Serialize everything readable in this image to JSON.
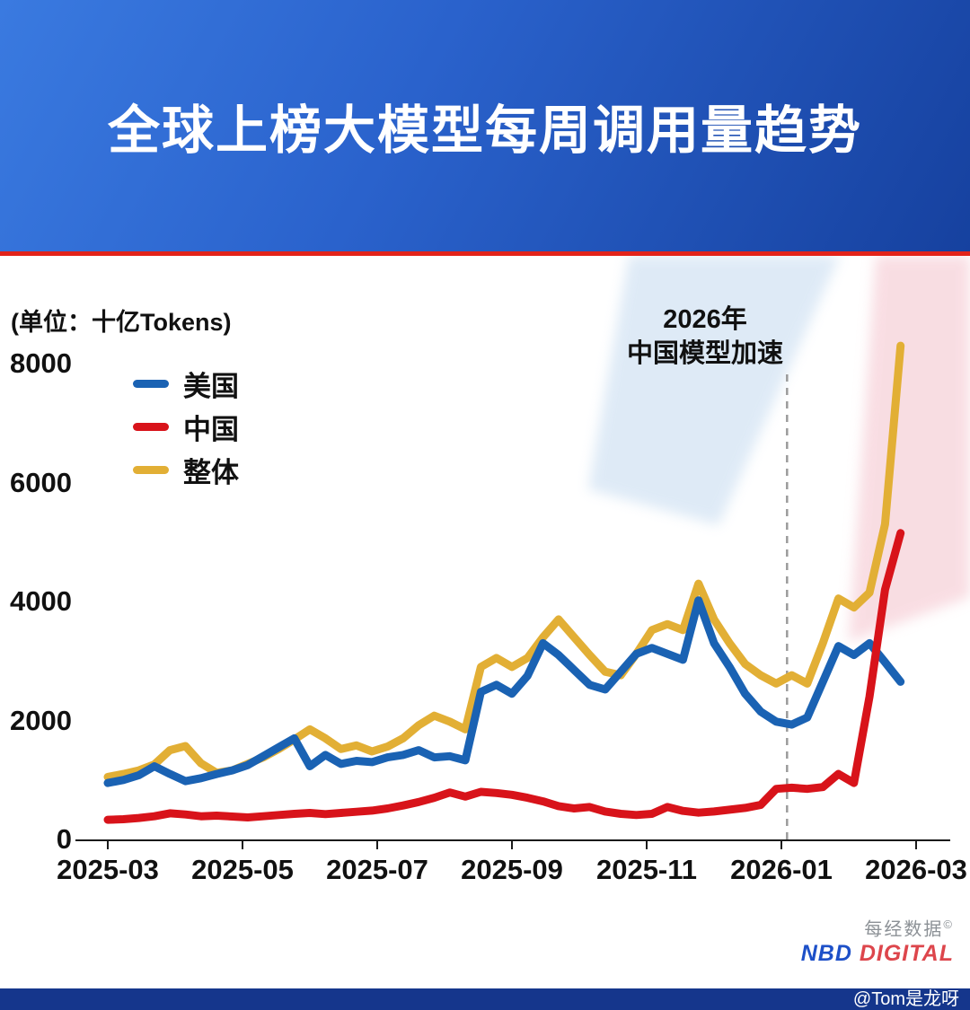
{
  "header": {
    "title": "全球上榜大模型每周调用量趋势"
  },
  "chart_data": {
    "type": "line",
    "title": "全球上榜大模型每周调用量趋势",
    "unit_label": "(单位：十亿Tokens)",
    "x_tick_labels": [
      "2025-03",
      "2025-05",
      "2025-07",
      "2025-09",
      "2025-11",
      "2026-01",
      "2026-03"
    ],
    "y_ticks": [
      0,
      2000,
      4000,
      6000,
      8000
    ],
    "ylim": [
      0,
      8600
    ],
    "x_weeks": 52,
    "grid": false,
    "legend_position": "top-left",
    "annotation": {
      "line1": "2026年",
      "line2": "中国模型加速",
      "x_index": 43.7
    },
    "series": [
      {
        "key": "us",
        "name": "美国",
        "color": "#1A62B3",
        "values": [
          950,
          1000,
          1080,
          1230,
          1100,
          980,
          1030,
          1100,
          1160,
          1250,
          1400,
          1550,
          1700,
          1230,
          1420,
          1270,
          1320,
          1300,
          1380,
          1420,
          1500,
          1380,
          1400,
          1330,
          2480,
          2600,
          2450,
          2750,
          3300,
          3100,
          2850,
          2600,
          2520,
          2820,
          3120,
          3220,
          3120,
          3020,
          4020,
          3300,
          2900,
          2450,
          2150,
          1980,
          1930,
          2050,
          2650,
          3250,
          3100,
          3300,
          2980,
          2650
        ]
      },
      {
        "key": "china",
        "name": "中国",
        "color": "#D8131A",
        "values": [
          330,
          340,
          360,
          390,
          440,
          420,
          390,
          400,
          385,
          370,
          390,
          410,
          430,
          445,
          425,
          445,
          465,
          485,
          520,
          570,
          630,
          700,
          790,
          720,
          800,
          780,
          750,
          700,
          640,
          560,
          520,
          545,
          470,
          430,
          410,
          430,
          545,
          480,
          450,
          470,
          500,
          530,
          580,
          850,
          870,
          850,
          880,
          1100,
          950,
          2400,
          4200,
          5150
        ]
      },
      {
        "key": "overall",
        "name": "整体",
        "color": "#E2AF35",
        "values": [
          1050,
          1100,
          1160,
          1260,
          1500,
          1570,
          1280,
          1120,
          1160,
          1270,
          1380,
          1520,
          1680,
          1850,
          1700,
          1520,
          1580,
          1480,
          1560,
          1700,
          1920,
          2080,
          1980,
          1850,
          2900,
          3050,
          2900,
          3050,
          3400,
          3700,
          3400,
          3100,
          2820,
          2760,
          3120,
          3520,
          3620,
          3520,
          4300,
          3700,
          3300,
          2950,
          2760,
          2620,
          2760,
          2620,
          3300,
          4050,
          3900,
          4150,
          5300,
          8300
        ]
      }
    ]
  },
  "watermark": {
    "line1": "每经数据",
    "copyright": "©",
    "brand_left": "NBD",
    "brand_right": "DIGITAL"
  },
  "footer": {
    "handle": "@Tom是龙呀"
  }
}
